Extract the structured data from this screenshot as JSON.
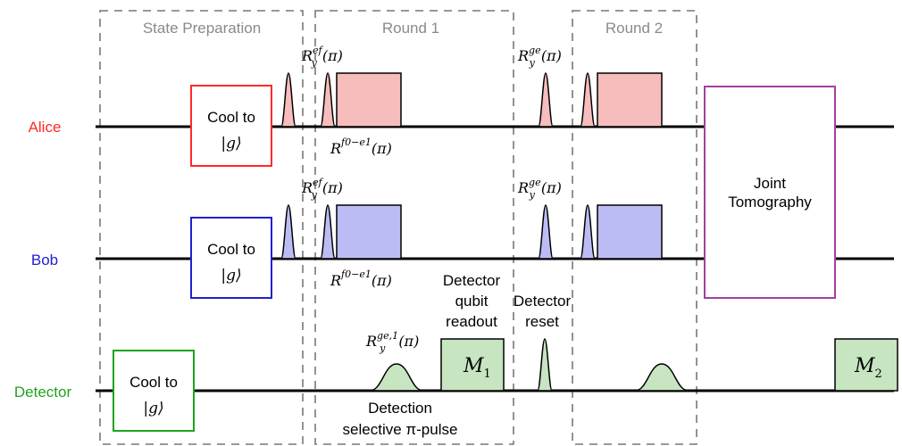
{
  "channels": [
    {
      "id": "alice",
      "label": "Alice",
      "color": "#ff2a2a"
    },
    {
      "id": "bob",
      "label": "Bob",
      "color": "#2020d0"
    },
    {
      "id": "detector",
      "label": "Detector",
      "color": "#1fa31f"
    }
  ],
  "sections": {
    "state_prep": "State Preparation",
    "round1": "Round 1",
    "round2": "Round 2"
  },
  "cool_box": {
    "line1": "Cool to",
    "line2": "|g⟩"
  },
  "tomography": {
    "line1": "Joint",
    "line2": "Tomography"
  },
  "pulse_labels": {
    "ry": "R",
    "ef_sup": "ef",
    "ge_sup": "ge",
    "ge1_sup": "ge,1",
    "sub_y": "y",
    "arg": "(π)",
    "swap_sup": "f0−e1"
  },
  "detector_labels": {
    "readout": [
      "Detector",
      "qubit",
      "readout"
    ],
    "reset": [
      "Detector",
      "reset"
    ],
    "selective": [
      "Detection",
      "selective π-pulse"
    ]
  },
  "measurements": {
    "m1": {
      "letter": "M",
      "sub": "1"
    },
    "m2": {
      "letter": "M",
      "sub": "2"
    }
  },
  "colors": {
    "alice_fill": "#f7bcbc",
    "bob_fill": "#bcbcf5",
    "detector_fill": "#c6e5c0",
    "tomography_border": "#a53fa5",
    "dashed": "#777777"
  }
}
